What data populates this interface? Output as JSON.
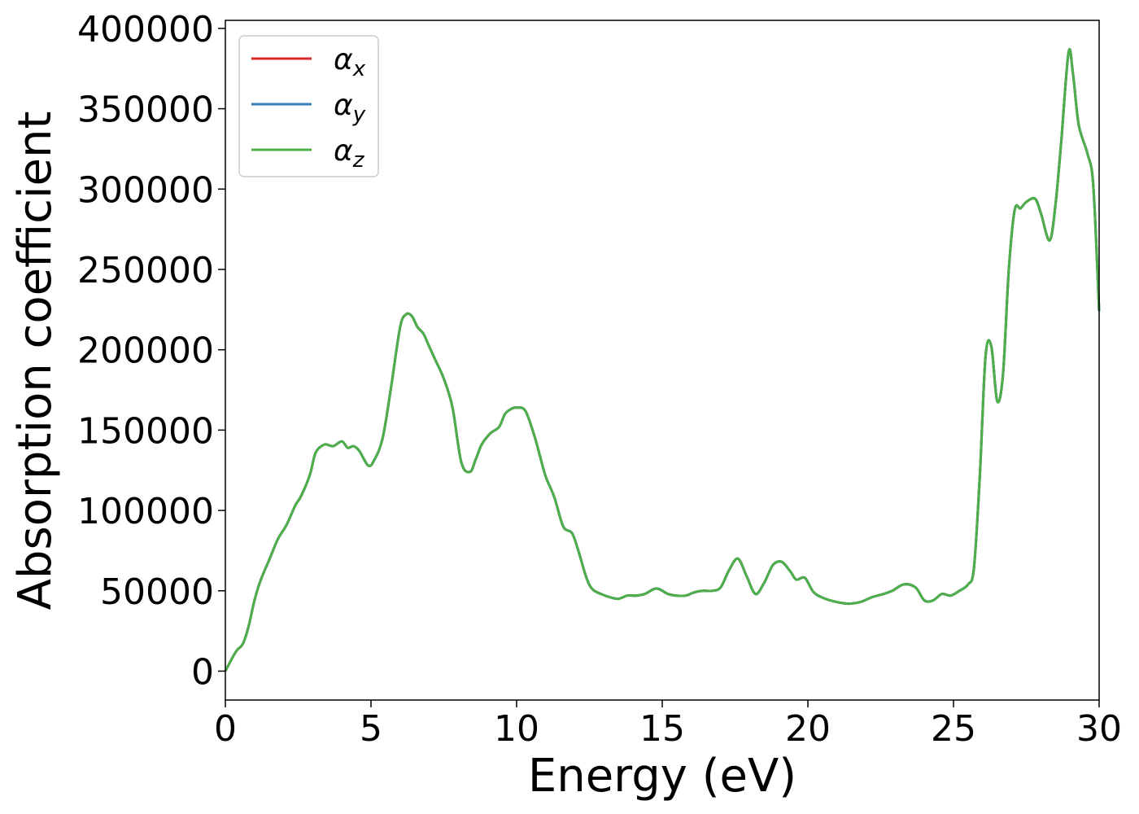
{
  "chart_data": {
    "type": "line",
    "title": "",
    "xlabel": "Energy (eV)",
    "ylabel": "Absorption coefficient",
    "xlim": [
      0,
      30
    ],
    "ylim": [
      -18000,
      405000
    ],
    "x_ticks": [
      "0",
      "5",
      "10",
      "15",
      "20",
      "25",
      "30"
    ],
    "x_tick_values": [
      0,
      5,
      10,
      15,
      20,
      25,
      30
    ],
    "y_ticks": [
      "0",
      "50000",
      "100000",
      "150000",
      "200000",
      "250000",
      "300000",
      "350000",
      "400000"
    ],
    "y_tick_values": [
      0,
      50000,
      100000,
      150000,
      200000,
      250000,
      300000,
      350000,
      400000
    ],
    "grid": false,
    "legend_position": "top-left",
    "x": [
      0,
      0.2,
      0.4,
      0.6,
      0.8,
      1.0,
      1.2,
      1.5,
      1.8,
      2.1,
      2.4,
      2.6,
      2.9,
      3.1,
      3.4,
      3.7,
      4.0,
      4.2,
      4.4,
      4.6,
      4.9,
      5.1,
      5.4,
      5.7,
      6.0,
      6.2,
      6.4,
      6.6,
      6.8,
      7.0,
      7.2,
      7.5,
      7.8,
      8.1,
      8.4,
      8.6,
      8.8,
      9.1,
      9.4,
      9.6,
      9.8,
      10.0,
      10.3,
      10.6,
      10.8,
      11.0,
      11.3,
      11.6,
      11.9,
      12.1,
      12.4,
      12.6,
      12.9,
      13.2,
      13.5,
      13.8,
      14.1,
      14.4,
      14.7,
      14.9,
      15.2,
      15.5,
      15.8,
      16.1,
      16.4,
      16.7,
      17.0,
      17.3,
      17.6,
      17.9,
      18.2,
      18.5,
      18.8,
      19.1,
      19.4,
      19.6,
      19.9,
      20.2,
      20.6,
      21.0,
      21.4,
      21.8,
      22.2,
      22.6,
      22.9,
      23.3,
      23.7,
      24.0,
      24.3,
      24.6,
      24.9,
      25.2,
      25.5,
      25.7,
      25.9,
      26.1,
      26.3,
      26.5,
      26.7,
      26.9,
      27.1,
      27.3,
      27.5,
      27.8,
      28.0,
      28.3,
      28.5,
      28.7,
      28.95,
      29.1,
      29.3,
      29.6,
      29.8,
      30.0
    ],
    "series": [
      {
        "name": "α_x",
        "color": "#d62728",
        "values": [
          0,
          7000,
          13000,
          17000,
          28000,
          44000,
          56000,
          69000,
          82000,
          91000,
          103000,
          109000,
          122000,
          136000,
          141000,
          140000,
          143000,
          139000,
          140000,
          137000,
          128000,
          131000,
          145000,
          178000,
          214000,
          222000,
          221000,
          214000,
          210000,
          202000,
          194000,
          182000,
          164000,
          130000,
          124000,
          132000,
          141000,
          148000,
          152000,
          160000,
          163000,
          164000,
          162000,
          147000,
          134000,
          121000,
          108000,
          90000,
          86000,
          76000,
          58000,
          51000,
          48000,
          46000,
          45000,
          47000,
          47000,
          48000,
          51000,
          51000,
          48000,
          47000,
          47000,
          49000,
          50000,
          50000,
          52000,
          63000,
          70000,
          59000,
          48000,
          55000,
          66000,
          68000,
          62000,
          57000,
          58000,
          49000,
          45000,
          43000,
          42000,
          43000,
          46000,
          48000,
          50000,
          54000,
          52000,
          44000,
          44000,
          48000,
          47000,
          50000,
          54000,
          64000,
          120000,
          196000,
          202000,
          168000,
          185000,
          250000,
          287000,
          288000,
          292000,
          294000,
          285000,
          268000,
          290000,
          330000,
          385000,
          372000,
          340000,
          322000,
          302000,
          224000
        ]
      },
      {
        "name": "α_y",
        "color": "#377eb8",
        "values": [
          0,
          7000,
          13000,
          17000,
          28000,
          44000,
          56000,
          69000,
          82000,
          91000,
          103000,
          109000,
          122000,
          136000,
          141000,
          140000,
          143000,
          139000,
          140000,
          137000,
          128000,
          131000,
          145000,
          178000,
          214000,
          222000,
          221000,
          214000,
          210000,
          202000,
          194000,
          182000,
          164000,
          130000,
          124000,
          132000,
          141000,
          148000,
          152000,
          160000,
          163000,
          164000,
          162000,
          147000,
          134000,
          121000,
          108000,
          90000,
          86000,
          76000,
          58000,
          51000,
          48000,
          46000,
          45000,
          47000,
          47000,
          48000,
          51000,
          51000,
          48000,
          47000,
          47000,
          49000,
          50000,
          50000,
          52000,
          63000,
          70000,
          59000,
          48000,
          55000,
          66000,
          68000,
          62000,
          57000,
          58000,
          49000,
          45000,
          43000,
          42000,
          43000,
          46000,
          48000,
          50000,
          54000,
          52000,
          44000,
          44000,
          48000,
          47000,
          50000,
          54000,
          64000,
          120000,
          196000,
          202000,
          168000,
          185000,
          250000,
          287000,
          288000,
          292000,
          294000,
          285000,
          268000,
          290000,
          330000,
          385000,
          372000,
          340000,
          322000,
          302000,
          224000
        ]
      },
      {
        "name": "α_z",
        "color": "#4daf4a",
        "values": [
          0,
          7000,
          13000,
          17000,
          28000,
          44000,
          56000,
          69000,
          82000,
          91000,
          103000,
          109000,
          122000,
          136000,
          141000,
          140000,
          143000,
          139000,
          140000,
          137000,
          128000,
          131000,
          145000,
          178000,
          214000,
          222000,
          221000,
          214000,
          210000,
          202000,
          194000,
          182000,
          164000,
          130000,
          124000,
          132000,
          141000,
          148000,
          152000,
          160000,
          163000,
          164000,
          162000,
          147000,
          134000,
          121000,
          108000,
          90000,
          86000,
          76000,
          58000,
          51000,
          48000,
          46000,
          45000,
          47000,
          47000,
          48000,
          51000,
          51000,
          48000,
          47000,
          47000,
          49000,
          50000,
          50000,
          52000,
          63000,
          70000,
          59000,
          48000,
          55000,
          66000,
          68000,
          62000,
          57000,
          58000,
          49000,
          45000,
          43000,
          42000,
          43000,
          46000,
          48000,
          50000,
          54000,
          52000,
          44000,
          44000,
          48000,
          47000,
          50000,
          54000,
          64000,
          120000,
          196000,
          202000,
          168000,
          185000,
          250000,
          287000,
          288000,
          292000,
          294000,
          285000,
          268000,
          290000,
          330000,
          385000,
          372000,
          340000,
          322000,
          302000,
          224000
        ]
      }
    ]
  }
}
